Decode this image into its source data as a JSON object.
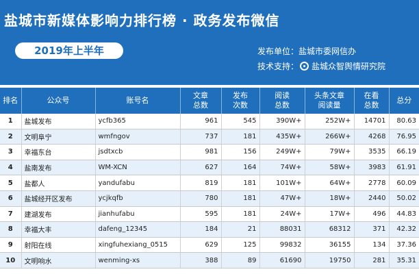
{
  "header": {
    "title": "盐城市新媒体影响力排行榜 · 政务发布微信",
    "period": "2019年上半年",
    "publisher": "发布单位：盐城市委网信办",
    "support_label": "技术支持：",
    "support_org": "盐城众智舆情研究院",
    "accent": "#1f6fbd"
  },
  "columns": [
    "排名",
    "公众号",
    "账号名",
    "文章\n总数",
    "发布\n次数",
    "阅读\n总数",
    "头条文章\n阅读量",
    "在看\n总数",
    "总分"
  ],
  "rows": [
    {
      "rank": "1",
      "name": "盐城发布",
      "account": "ycfb365",
      "articles": "961",
      "posts": "545",
      "reads": "390W+",
      "headline_reads": "252W+",
      "likes": "14701",
      "score": "80.63"
    },
    {
      "rank": "2",
      "name": "文明阜宁",
      "account": "wmfngov",
      "articles": "737",
      "posts": "181",
      "reads": "435W+",
      "headline_reads": "266W+",
      "likes": "4268",
      "score": "76.95"
    },
    {
      "rank": "3",
      "name": "幸福东台",
      "account": "jsdtxcb",
      "articles": "981",
      "posts": "156",
      "reads": "249W+",
      "headline_reads": "79W+",
      "likes": "3535",
      "score": "66.19"
    },
    {
      "rank": "4",
      "name": "盐南发布",
      "account": "WM-XCN",
      "articles": "627",
      "posts": "164",
      "reads": "74W+",
      "headline_reads": "58W+",
      "likes": "3983",
      "score": "61.91"
    },
    {
      "rank": "5",
      "name": "盐都人",
      "account": "yandufabu",
      "articles": "819",
      "posts": "181",
      "reads": "101W+",
      "headline_reads": "64W+",
      "likes": "2778",
      "score": "60.09"
    },
    {
      "rank": "6",
      "name": "盐城经开区发布",
      "account": "ycjkqfb",
      "articles": "780",
      "posts": "181",
      "reads": "47W+",
      "headline_reads": "18W+",
      "likes": "2440",
      "score": "50.02"
    },
    {
      "rank": "7",
      "name": "建湖发布",
      "account": "jianhufabu",
      "articles": "595",
      "posts": "181",
      "reads": "24W+",
      "headline_reads": "17W+",
      "likes": "496",
      "score": "44.83"
    },
    {
      "rank": "8",
      "name": "幸福大丰",
      "account": "dafeng_12345",
      "articles": "184",
      "posts": "21",
      "reads": "88031",
      "headline_reads": "68312",
      "likes": "371",
      "score": "42.32"
    },
    {
      "rank": "9",
      "name": "射阳在线",
      "account": "xingfuhexiang_0515",
      "articles": "629",
      "posts": "125",
      "reads": "99832",
      "headline_reads": "36155",
      "likes": "134",
      "score": "37.36"
    },
    {
      "rank": "10",
      "name": "文明响水",
      "account": "wenming-xs",
      "articles": "388",
      "posts": "89",
      "reads": "61690",
      "headline_reads": "19750",
      "likes": "281",
      "score": "35.31"
    }
  ]
}
